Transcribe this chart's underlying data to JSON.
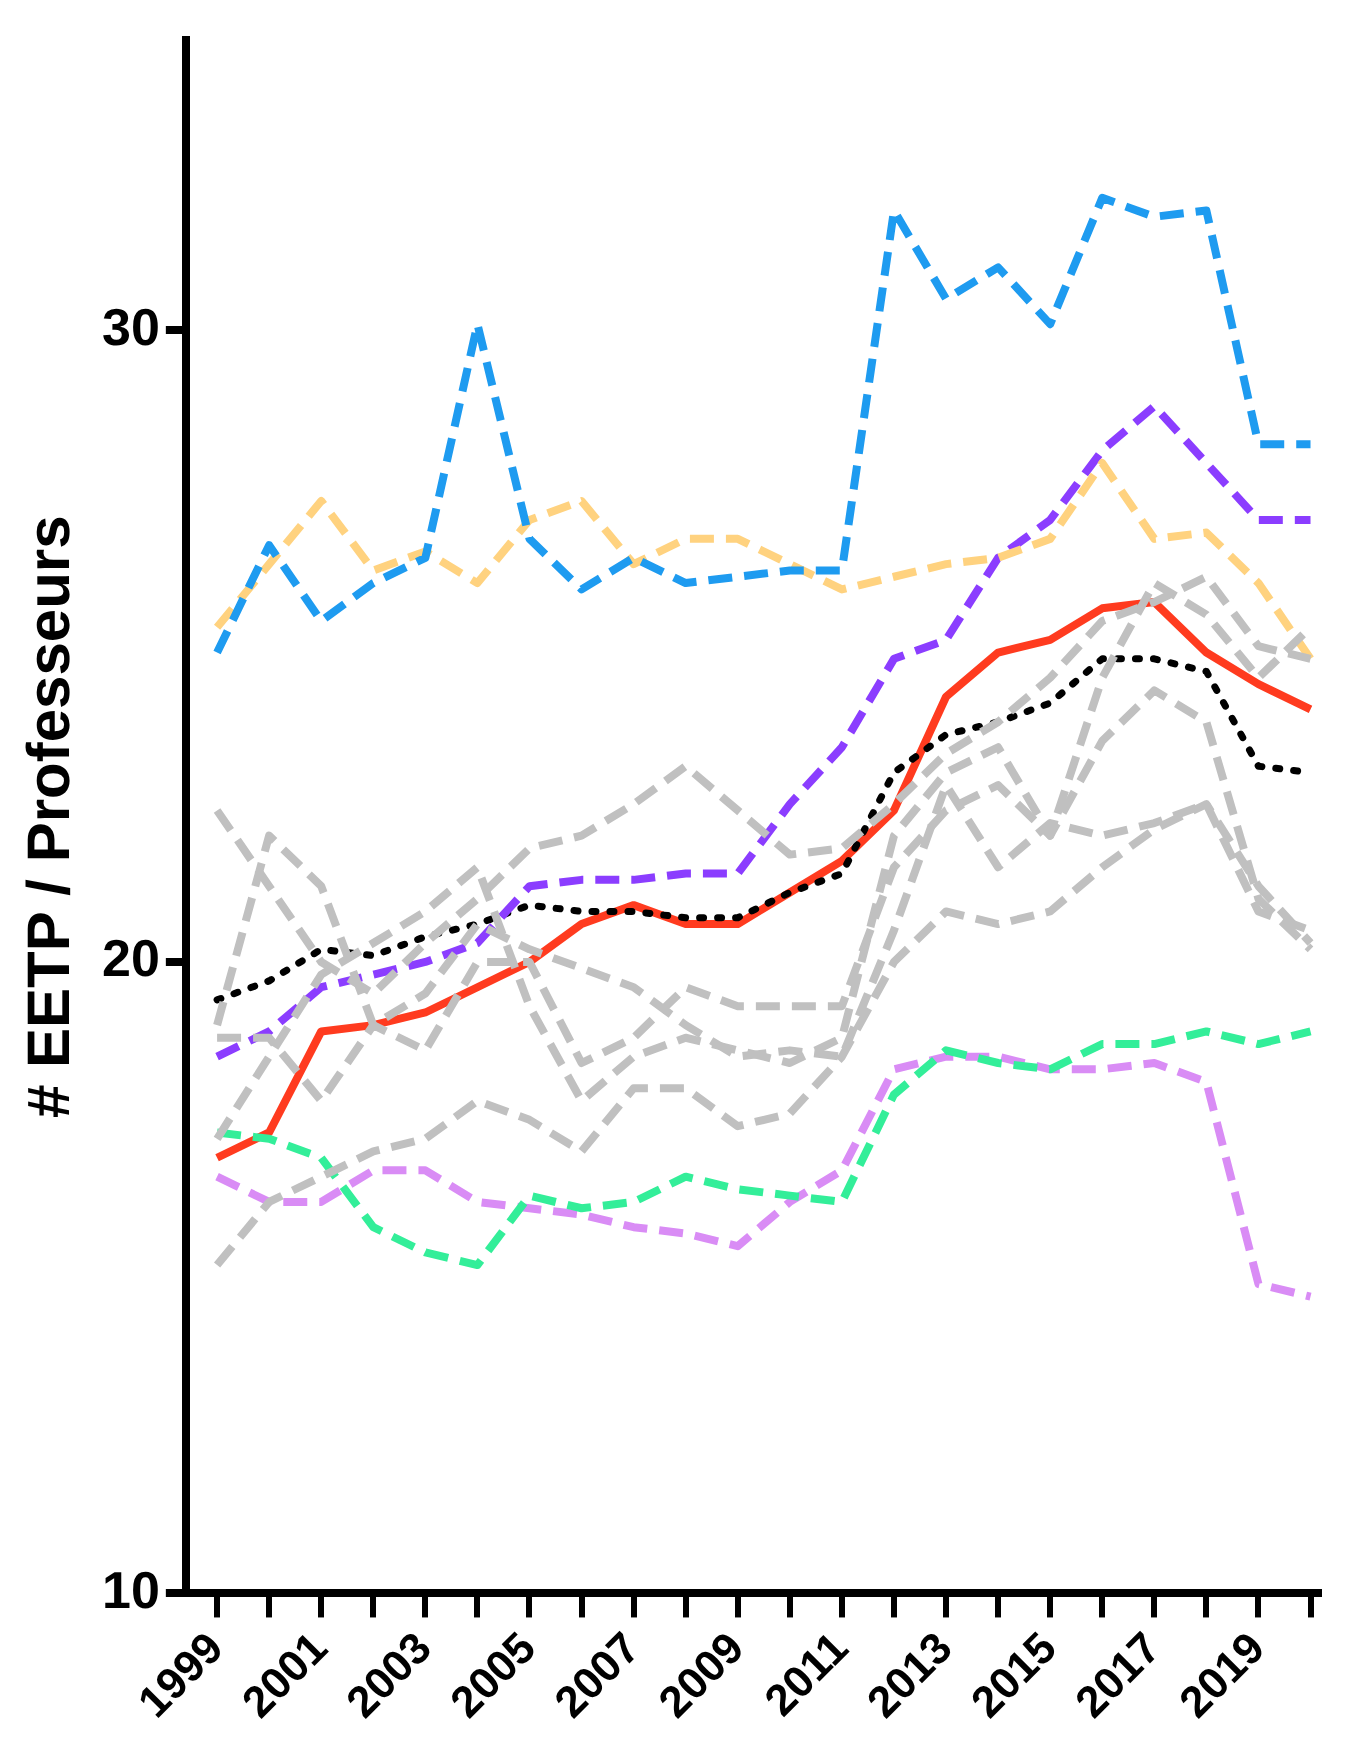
{
  "chart_data": {
    "type": "line",
    "ylabel": "# EETP / Professeurs",
    "xlim": [
      1998.4,
      2020.2
    ],
    "ylim": [
      10,
      34.6
    ],
    "yticks": [
      10,
      20,
      30
    ],
    "xticks": [
      1999,
      {
        "value": 2000,
        "label": null
      },
      2001,
      {
        "value": 2002,
        "label": null
      },
      2003,
      {
        "value": 2004,
        "label": null
      },
      2005,
      {
        "value": 2006,
        "label": null
      },
      2007,
      {
        "value": 2008,
        "label": null
      },
      2009,
      {
        "value": 2010,
        "label": null
      },
      2011,
      {
        "value": 2012,
        "label": null
      },
      2013,
      {
        "value": 2014,
        "label": null
      },
      2015,
      {
        "value": 2016,
        "label": null
      },
      2017,
      {
        "value": 2018,
        "label": null
      },
      2019,
      {
        "value": 2020,
        "label": null
      }
    ],
    "x": [
      1999,
      2000,
      2001,
      2002,
      2003,
      2004,
      2005,
      2006,
      2007,
      2008,
      2009,
      2010,
      2011,
      2012,
      2013,
      2014,
      2015,
      2016,
      2017,
      2018,
      2019,
      2020
    ],
    "grid": false,
    "legend": false,
    "marker": "none",
    "series": [
      {
        "color": "#c0c0c0",
        "line_style": "dashed",
        "values": [
          22.4,
          21.2,
          20.0,
          19.5,
          20.3,
          21.0,
          21.8,
          22.0,
          22.5,
          23.1,
          22.4,
          21.7,
          21.8,
          22.5,
          23.3,
          23.8,
          24.5,
          25.4,
          25.7,
          26.1,
          25.0,
          24.8
        ]
      },
      {
        "color": "#c0c0c0",
        "line_style": "dashed",
        "values": [
          19.0,
          22.0,
          21.2,
          19.0,
          19.5,
          20.6,
          20.2,
          19.9,
          19.6,
          19.0,
          18.5,
          18.6,
          18.5,
          20.5,
          22.8,
          21.5,
          22.2,
          22.0,
          22.2,
          22.5,
          20.8,
          20.5
        ]
      },
      {
        "color": "#c0c0c0",
        "line_style": "dashed",
        "values": [
          15.2,
          16.2,
          16.6,
          17.0,
          17.2,
          17.8,
          17.5,
          17.0,
          18.0,
          18.0,
          17.4,
          17.6,
          18.5,
          20.0,
          20.8,
          20.6,
          20.8,
          21.5,
          22.1,
          22.5,
          21.2,
          20.3
        ]
      },
      {
        "color": "#c0c0c0",
        "line_style": "dashed",
        "values": [
          18.8,
          18.8,
          17.8,
          19.0,
          18.6,
          20.0,
          20.0,
          18.4,
          18.8,
          19.6,
          19.3,
          19.3,
          19.3,
          21.5,
          22.4,
          22.8,
          22.0,
          23.5,
          24.3,
          23.8,
          21.0,
          20.2
        ]
      },
      {
        "color": "#c0c0c0",
        "line_style": "dashed",
        "values": [
          17.2,
          18.5,
          19.8,
          20.3,
          20.8,
          21.5,
          19.3,
          17.8,
          18.5,
          18.8,
          18.6,
          18.4,
          18.8,
          22.0,
          23.0,
          23.4,
          22.0,
          24.5,
          26.0,
          25.5,
          24.5,
          25.3
        ]
      },
      {
        "color": "#1e9bf0",
        "line_style": "dashed",
        "values": [
          24.9,
          26.6,
          25.4,
          26.0,
          26.4,
          30.1,
          26.7,
          25.9,
          26.4,
          26.0,
          26.1,
          26.2,
          26.2,
          31.9,
          30.5,
          31.0,
          30.1,
          32.1,
          31.8,
          31.9,
          28.2,
          28.2
        ]
      },
      {
        "color": "#ffd27f",
        "line_style": "dashed",
        "values": [
          25.3,
          26.3,
          27.3,
          26.2,
          26.5,
          26.0,
          27.0,
          27.3,
          26.3,
          26.7,
          26.7,
          26.3,
          25.9,
          26.1,
          26.3,
          26.4,
          26.7,
          27.9,
          26.7,
          26.8,
          26.0,
          24.8
        ]
      },
      {
        "color": "#8b3dff",
        "line_style": "dashed",
        "values": [
          18.5,
          18.9,
          19.6,
          19.8,
          20.0,
          20.3,
          21.2,
          21.3,
          21.3,
          21.4,
          21.4,
          22.5,
          23.4,
          24.8,
          25.1,
          26.4,
          27.0,
          28.1,
          28.8,
          27.9,
          27.0,
          27.0
        ]
      },
      {
        "color": "#33ee99",
        "line_style": "dashed",
        "values": [
          17.3,
          17.2,
          16.9,
          15.8,
          15.4,
          15.2,
          16.3,
          16.1,
          16.2,
          16.6,
          16.4,
          16.3,
          16.2,
          17.9,
          18.6,
          18.4,
          18.3,
          18.7,
          18.7,
          18.9,
          18.7,
          18.9
        ]
      },
      {
        "color": "#d98cf5",
        "line_style": "dashed",
        "values": [
          16.6,
          16.2,
          16.2,
          16.7,
          16.7,
          16.2,
          16.1,
          16.0,
          15.8,
          15.7,
          15.5,
          16.2,
          16.7,
          18.3,
          18.5,
          18.5,
          18.3,
          18.3,
          18.4,
          18.1,
          14.9,
          14.7
        ]
      },
      {
        "color": "#000000",
        "line_style": "dotted",
        "values": [
          19.4,
          19.7,
          20.2,
          20.1,
          20.4,
          20.6,
          20.9,
          20.8,
          20.8,
          20.7,
          20.7,
          21.1,
          21.4,
          23.0,
          23.6,
          23.8,
          24.1,
          24.8,
          24.8,
          24.6,
          23.1,
          23.0
        ]
      },
      {
        "color": "#ff3b1f",
        "line_style": "solid",
        "values": [
          16.9,
          17.3,
          18.9,
          19.0,
          19.2,
          19.6,
          20.0,
          20.6,
          20.9,
          20.6,
          20.6,
          21.1,
          21.6,
          22.4,
          24.2,
          24.9,
          25.1,
          25.6,
          25.7,
          24.9,
          24.4,
          24.0
        ]
      }
    ]
  }
}
